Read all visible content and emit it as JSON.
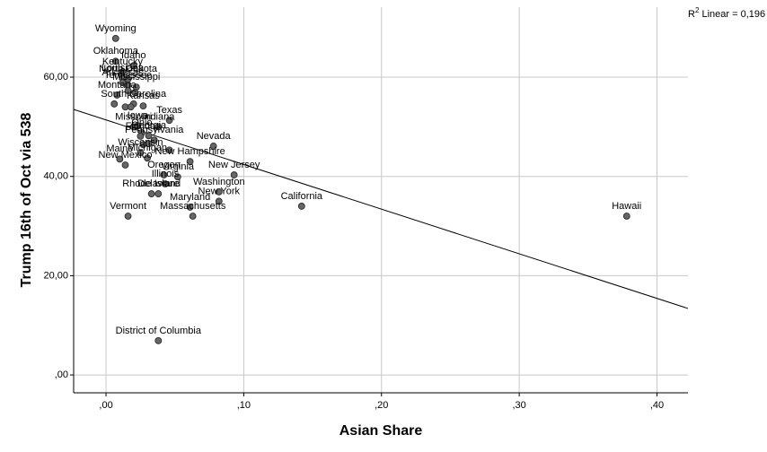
{
  "chart_data": {
    "type": "scatter",
    "xlabel": "Asian Share",
    "ylabel": "Trump 16th of Oct via 538",
    "annotation": {
      "base": "R",
      "sup": "2",
      "text": " Linear = 0,196"
    },
    "xlim": [
      -0.0235,
      0.4225
    ],
    "ylim": [
      -3.6,
      74.1
    ],
    "xticks": [
      {
        "value": 0,
        "label": ",00"
      },
      {
        "value": 0.1,
        "label": ",10"
      },
      {
        "value": 0.2,
        "label": ",20"
      },
      {
        "value": 0.3,
        "label": ",30"
      },
      {
        "value": 0.4,
        "label": ",40"
      }
    ],
    "yticks": [
      {
        "value": 0,
        "label": ",00"
      },
      {
        "value": 20,
        "label": "20,00"
      },
      {
        "value": 40,
        "label": "40,00"
      },
      {
        "value": 60,
        "label": "60,00"
      }
    ],
    "grid": true,
    "color": "#666666",
    "fit_line": {
      "x": [
        -0.0235,
        0.4225
      ],
      "y": [
        53.5,
        13.4
      ]
    },
    "labels": [
      "Wyoming",
      "Oklahoma",
      "Idaho",
      "Kentucky",
      "North Dakota",
      "Louisiana",
      "Arkansas",
      "Tennessee",
      "Mississippi",
      null,
      null,
      "Montana",
      null,
      "Kansas",
      "South Carolina",
      null,
      null,
      "Texas",
      "Indiana",
      "Missouri",
      "Iowa",
      "Ohio",
      "Florida",
      "Georgia",
      "Pennsylvania",
      null,
      null,
      "Nevada",
      "Wisconsin",
      null,
      "Michigan",
      "New Hampshire",
      "Maine",
      "New Mexico",
      "Oregon",
      "Virginia",
      "New Jersey",
      "Illinois",
      "Rhode Island",
      "Delaware",
      "Washington",
      "New York",
      "Maryland",
      "California",
      "Massachusetts",
      "Vermont",
      "Hawaii",
      "District of Columbia"
    ],
    "x": [
      0.007,
      0.007,
      0.02,
      0.012,
      0.016,
      0.012,
      0.012,
      0.016,
      0.022,
      0.021,
      0.016,
      0.008,
      0.006,
      0.027,
      0.02,
      0.014,
      0.018,
      0.046,
      0.038,
      0.02,
      0.023,
      0.026,
      0.025,
      0.031,
      0.035,
      0.031,
      0.027,
      0.078,
      0.025,
      0.046,
      0.03,
      0.061,
      0.01,
      0.014,
      0.042,
      0.052,
      0.093,
      0.043,
      0.033,
      0.038,
      0.082,
      0.082,
      0.061,
      0.142,
      0.063,
      0.016,
      0.378,
      0.038
    ],
    "y": [
      67.8,
      63.2,
      62.3,
      61.1,
      59.6,
      59.8,
      58.9,
      58.4,
      58.0,
      56.9,
      57.3,
      56.4,
      54.6,
      54.2,
      54.6,
      54.0,
      54.0,
      51.3,
      50.0,
      50.0,
      50.2,
      48.8,
      48.1,
      48.2,
      47.3,
      46.6,
      46.4,
      46.1,
      44.8,
      45.3,
      43.7,
      43.0,
      43.5,
      42.3,
      40.3,
      39.9,
      40.3,
      38.5,
      36.5,
      36.5,
      36.9,
      35.0,
      33.8,
      34.0,
      32.0,
      32.0,
      32.0,
      6.9
    ]
  }
}
